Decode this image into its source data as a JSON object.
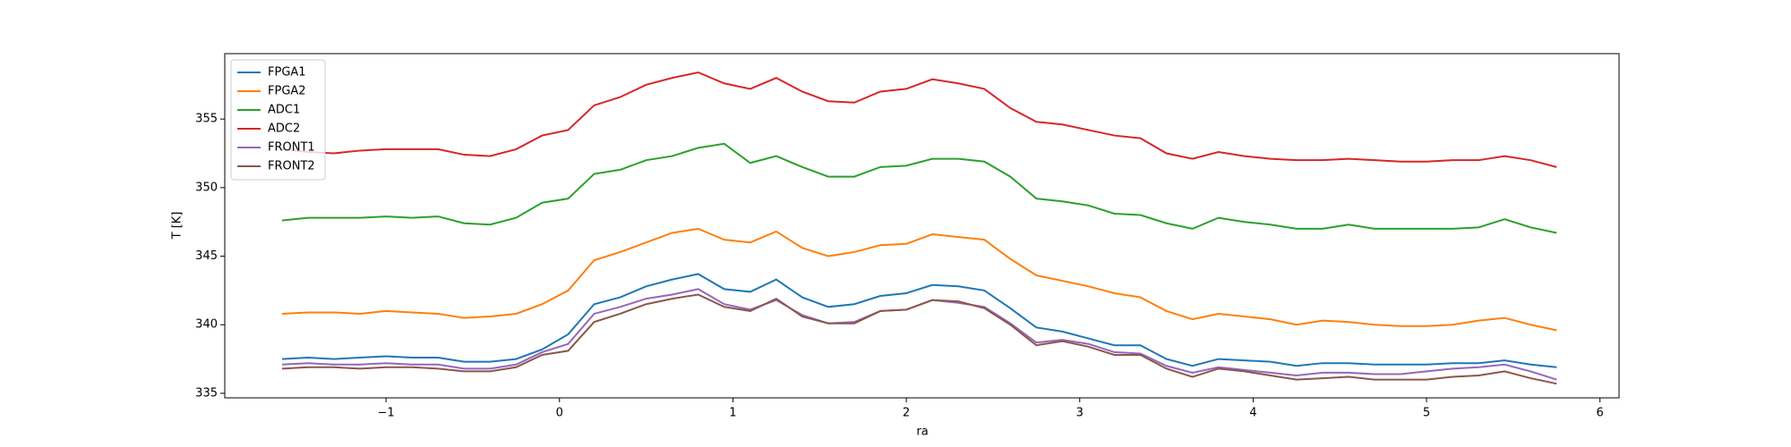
{
  "chart_data": {
    "type": "line",
    "x_label": "ra",
    "y_label": "T [K]",
    "x": [
      -1.6,
      -1.45,
      -1.3,
      -1.15,
      -1.0,
      -0.85,
      -0.7,
      -0.55,
      -0.4,
      -0.25,
      -0.1,
      0.05,
      0.2,
      0.35,
      0.5,
      0.65,
      0.8,
      0.95,
      1.1,
      1.25,
      1.4,
      1.55,
      1.7,
      1.85,
      2.0,
      2.15,
      2.3,
      2.45,
      2.6,
      2.75,
      2.9,
      3.05,
      3.2,
      3.35,
      3.5,
      3.65,
      3.8,
      3.95,
      4.1,
      4.25,
      4.4,
      4.55,
      4.7,
      4.85,
      5.0,
      5.15,
      5.3,
      5.45,
      5.6,
      5.75
    ],
    "series": [
      {
        "name": "FPGA1",
        "color": "#1f77b4",
        "values": [
          337.5,
          337.6,
          337.5,
          337.6,
          337.7,
          337.6,
          337.6,
          337.3,
          337.3,
          337.5,
          338.2,
          339.3,
          341.5,
          342,
          342.8,
          343.3,
          343.7,
          342.6,
          342.4,
          343.3,
          342,
          341.3,
          341.5,
          342.1,
          342.3,
          342.9,
          342.8,
          342.5,
          341.2,
          339.8,
          339.5,
          339,
          338.5,
          338.5,
          337.5,
          337,
          337.5,
          337.4,
          337.3,
          337,
          337.2,
          337.2,
          337.1,
          337.1,
          337.1,
          337.2,
          337.2,
          337.4,
          337.1,
          336.9
        ]
      },
      {
        "name": "FPGA2",
        "color": "#ff7f0e",
        "values": [
          340.8,
          340.9,
          340.9,
          340.8,
          341,
          340.9,
          340.8,
          340.5,
          340.6,
          340.8,
          341.5,
          342.5,
          344.7,
          345.3,
          346,
          346.7,
          347,
          346.2,
          346,
          346.8,
          345.6,
          345,
          345.3,
          345.8,
          345.9,
          346.6,
          346.4,
          346.2,
          344.8,
          343.6,
          343.2,
          342.8,
          342.3,
          342,
          341,
          340.4,
          340.8,
          340.6,
          340.4,
          340,
          340.3,
          340.2,
          340,
          339.9,
          339.9,
          340,
          340.3,
          340.5,
          340,
          339.6
        ]
      },
      {
        "name": "ADC1",
        "color": "#2ca02c",
        "values": [
          347.6,
          347.8,
          347.8,
          347.8,
          347.9,
          347.8,
          347.9,
          347.4,
          347.3,
          347.8,
          348.9,
          349.2,
          351,
          351.3,
          352,
          352.3,
          352.9,
          353.2,
          351.8,
          352.3,
          351.5,
          350.8,
          350.8,
          351.5,
          351.6,
          352.1,
          352.1,
          351.9,
          350.8,
          349.2,
          349,
          348.7,
          348.1,
          348,
          347.4,
          347,
          347.8,
          347.5,
          347.3,
          347,
          347,
          347.3,
          347,
          347,
          347,
          347,
          347.1,
          347.7,
          347.1,
          346.7
        ]
      },
      {
        "name": "ADC2",
        "color": "#d62728",
        "values": [
          352.8,
          352.6,
          352.5,
          352.7,
          352.8,
          352.8,
          352.8,
          352.4,
          352.3,
          352.8,
          353.8,
          354.2,
          356,
          356.6,
          357.5,
          358,
          358.4,
          357.6,
          357.2,
          358,
          357,
          356.3,
          356.2,
          357,
          357.2,
          357.9,
          357.6,
          357.2,
          355.8,
          354.8,
          354.6,
          354.2,
          353.8,
          353.6,
          352.5,
          352.1,
          352.6,
          352.3,
          352.1,
          352,
          352,
          352.1,
          352,
          351.9,
          351.9,
          352,
          352,
          352.3,
          352,
          351.5
        ]
      },
      {
        "name": "FRONT1",
        "color": "#9467bd",
        "values": [
          337.1,
          337.2,
          337.1,
          337.1,
          337.2,
          337.1,
          337.1,
          336.8,
          336.8,
          337.1,
          338,
          338.6,
          340.8,
          341.3,
          341.9,
          342.2,
          342.6,
          341.5,
          341.1,
          341.8,
          340.7,
          340.1,
          340.2,
          341,
          341.1,
          341.8,
          341.6,
          341.3,
          340.1,
          338.7,
          338.9,
          338.6,
          338,
          337.9,
          337,
          336.5,
          336.9,
          336.7,
          336.5,
          336.3,
          336.5,
          336.5,
          336.4,
          336.4,
          336.6,
          336.8,
          336.9,
          337.1,
          336.6,
          336
        ]
      },
      {
        "name": "FRONT2",
        "color": "#8c564b",
        "values": [
          336.8,
          336.9,
          336.9,
          336.8,
          336.9,
          336.9,
          336.8,
          336.6,
          336.6,
          336.9,
          337.8,
          338.1,
          340.2,
          340.8,
          341.5,
          341.9,
          342.2,
          341.3,
          341,
          341.9,
          340.6,
          340.1,
          340.1,
          341,
          341.1,
          341.8,
          341.7,
          341.2,
          340,
          338.5,
          338.8,
          338.4,
          337.8,
          337.8,
          336.8,
          336.2,
          336.8,
          336.6,
          336.3,
          336,
          336.1,
          336.2,
          336,
          336,
          336,
          336.2,
          336.3,
          336.6,
          336.1,
          335.7
        ]
      }
    ],
    "xlim": [
      -1.93,
      6.11
    ],
    "ylim": [
      334.67,
      359.77
    ],
    "xticks": [
      {
        "value": -1,
        "label": "−1"
      },
      0,
      1,
      2,
      3,
      4,
      5,
      6
    ],
    "yticks": [
      335,
      340,
      345,
      350,
      355
    ],
    "legend": "upper left",
    "grid": false
  }
}
